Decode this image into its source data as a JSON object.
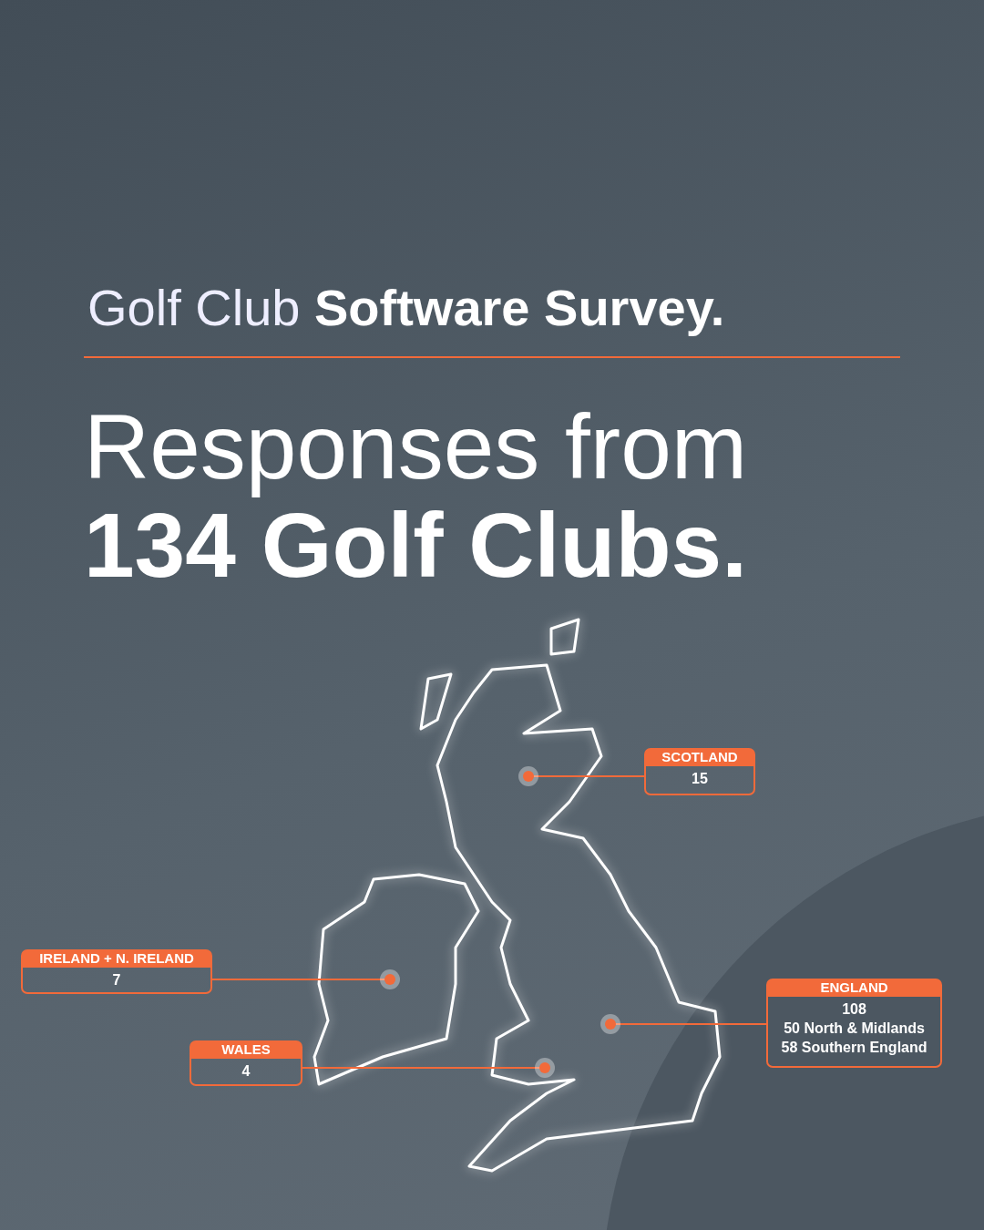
{
  "chart_data": {
    "type": "other",
    "title": "Golf Club Software Survey.",
    "subtitle": "Responses from 134 Golf Clubs.",
    "categories": [
      "SCOTLAND",
      "IRELAND + N. IRELAND",
      "WALES",
      "ENGLAND"
    ],
    "values": [
      15,
      7,
      4,
      108
    ],
    "data_labels": true,
    "annotations": [
      "50 North & Midlands",
      "58 Southern England"
    ],
    "color": "#f26a3a"
  }
}
